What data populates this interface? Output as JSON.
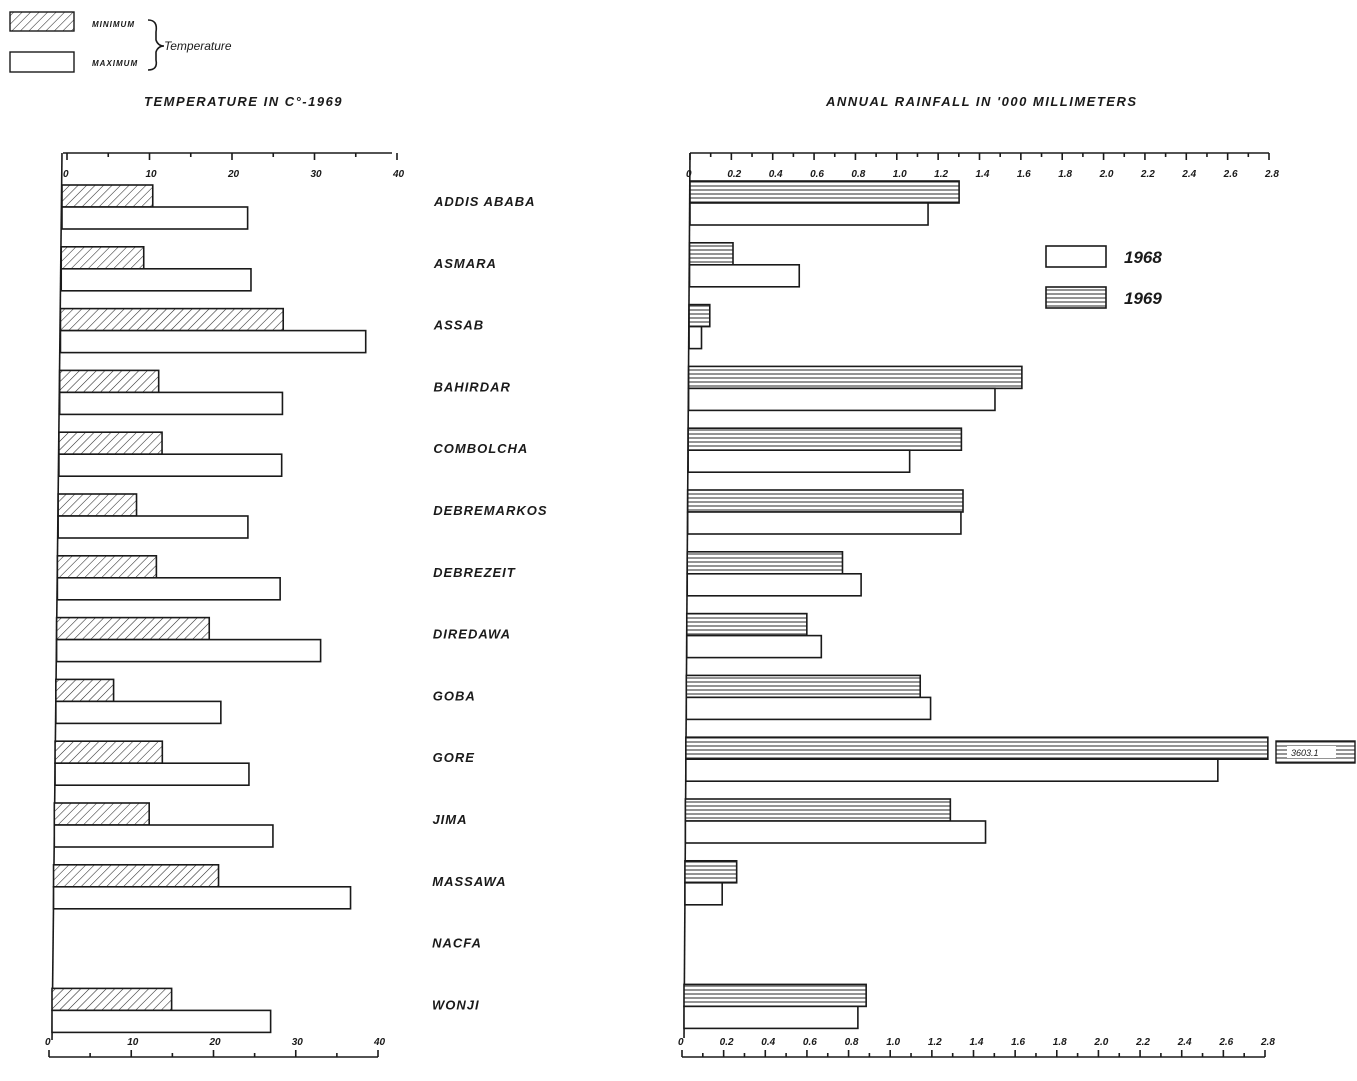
{
  "chart_data": [
    {
      "type": "bar",
      "orientation": "horizontal",
      "title": "TEMPERATURE IN C°-1969",
      "categories": [
        "ADDIS ABABA",
        "ASMARA",
        "ASSAB",
        "BAHIRDAR",
        "COMBOLCHA",
        "DEBREMARKOS",
        "DEBREZEIT",
        "DIREDAWA",
        "GOBA",
        "GORE",
        "JIMA",
        "MASSAWA",
        "NACFA",
        "WONJI"
      ],
      "series": [
        {
          "name": "MINIMUM",
          "pattern": "diagonal-hatch",
          "values": [
            11,
            10,
            27,
            12,
            12.5,
            9.5,
            12,
            18.5,
            7,
            13,
            11.5,
            20,
            null,
            14.5
          ]
        },
        {
          "name": "MAXIMUM",
          "pattern": "plain",
          "values": [
            22.5,
            23,
            37,
            27,
            27,
            23,
            27,
            32,
            20,
            23.5,
            26.5,
            36,
            null,
            26.5
          ]
        }
      ],
      "xlim": [
        0,
        40
      ],
      "ticks_top": [
        "0",
        "10",
        "20",
        "30",
        "40"
      ],
      "ticks_bottom": [
        "0",
        "10",
        "20",
        "30",
        "40"
      ],
      "legend": {
        "minimum_label": "MINIMUM",
        "maximum_label": "MAXIMUM",
        "group_label": "Temperature",
        "placement": "top-left"
      }
    },
    {
      "type": "bar",
      "orientation": "horizontal",
      "title": "ANNUAL RAINFALL IN '000 MILLIMETERS",
      "categories": [
        "ADDIS ABABA",
        "ASMARA",
        "ASSAB",
        "BAHIRDAR",
        "COMBOLCHA",
        "DEBREMARKOS",
        "DEBREZEIT",
        "DIREDAWA",
        "GOBA",
        "GORE",
        "JIMA",
        "MASSAWA",
        "NACFA",
        "WONJI"
      ],
      "series": [
        {
          "name": "1969",
          "pattern": "horizontal-lines",
          "values": [
            1.3,
            0.21,
            0.1,
            1.61,
            1.32,
            1.33,
            0.75,
            0.58,
            1.13,
            3.6031,
            1.28,
            0.25,
            null,
            0.88
          ]
        },
        {
          "name": "1968",
          "pattern": "plain",
          "values": [
            1.15,
            0.53,
            0.06,
            1.48,
            1.07,
            1.32,
            0.84,
            0.65,
            1.18,
            2.57,
            1.45,
            0.18,
            null,
            0.84
          ]
        }
      ],
      "xlim": [
        0,
        2.8
      ],
      "ticks_top": [
        "0",
        "0.2",
        "0.4",
        "0.6",
        "0.8",
        "1.0",
        "1.2",
        "1.4",
        "1.6",
        "1.8",
        "2.0",
        "2.2",
        "2.4",
        "2.6",
        "2.8"
      ],
      "ticks_bottom": [
        "0",
        "0.2",
        "0.4",
        "0.6",
        "0.8",
        "1.0",
        "1.2",
        "1.4",
        "1.6",
        "1.8",
        "2.0",
        "2.2",
        "2.4",
        "2.6",
        "2.8"
      ],
      "legend": {
        "items": [
          "1968",
          "1969"
        ],
        "placement": "top-right"
      },
      "annotation": "3603.1"
    }
  ]
}
